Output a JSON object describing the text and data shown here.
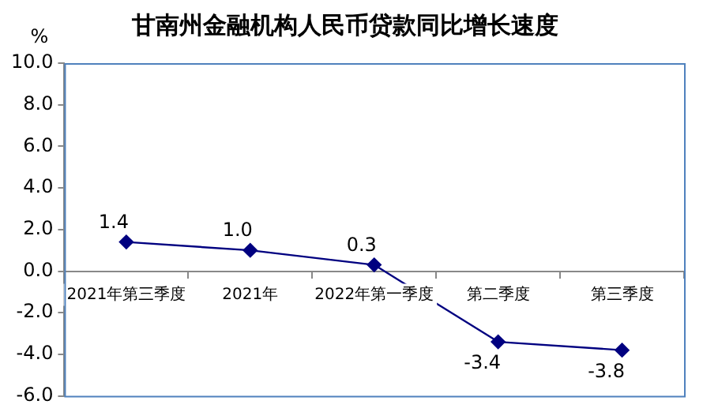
{
  "chart_data": {
    "type": "line",
    "title": "甘南州金融机构人民币贷款同比增长速度",
    "ylabel": "%",
    "categories": [
      "2021年第三季度",
      "2021年",
      "2022年第一季度",
      "第二季度",
      "第三季度"
    ],
    "series": [
      {
        "color": "#000080",
        "values": [
          1.4,
          1.0,
          0.3,
          -3.4,
          -3.8
        ],
        "value_labels": [
          "1.4",
          "1.0",
          "0.3",
          "-3.4",
          "-3.8"
        ]
      }
    ],
    "ylim": [
      -6,
      10
    ],
    "yticks": [
      {
        "value": -6,
        "label": "-6.0"
      },
      {
        "value": -4,
        "label": "-4.0"
      },
      {
        "value": -2,
        "label": "-2.0"
      },
      {
        "value": 0,
        "label": "0.0"
      },
      {
        "value": 2,
        "label": "2.0"
      },
      {
        "value": 4,
        "label": "4.0"
      },
      {
        "value": 6,
        "label": "6.0"
      },
      {
        "value": 8,
        "label": "8.0"
      },
      {
        "value": 10,
        "label": "10.0"
      }
    ],
    "grid": false,
    "legend": false,
    "marker": "diamond",
    "line_style": "solid"
  }
}
